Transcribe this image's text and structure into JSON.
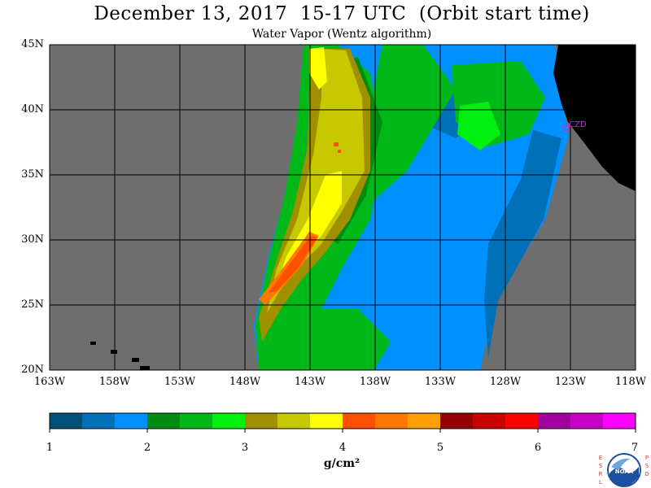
{
  "header": {
    "title": "December 13, 2017  15-17 UTC  (Orbit start time)",
    "subtitle": "Water Vapor (Wentz algorithm)"
  },
  "map": {
    "lat_labels": [
      "45N",
      "40N",
      "35N",
      "30N",
      "25N",
      "20N"
    ],
    "lon_labels": [
      "163W",
      "158W",
      "153W",
      "148W",
      "143W",
      "138W",
      "133W",
      "128W",
      "123W",
      "118W"
    ],
    "station_label": "CZD",
    "station_color": "#e020e0",
    "no_data_color": "#6e6e6e",
    "land_color": "#000000"
  },
  "colorbar": {
    "labels": [
      "1",
      "2",
      "3",
      "4",
      "5",
      "6",
      "7"
    ],
    "units": "g/cm²",
    "colors": [
      "#005078",
      "#0070b8",
      "#0090ff",
      "#008c10",
      "#00b818",
      "#00f010",
      "#a09000",
      "#c8c800",
      "#ffff00",
      "#ff5000",
      "#ff7800",
      "#ffa000",
      "#960000",
      "#c80000",
      "#ff0000",
      "#a000a0",
      "#c800c8",
      "#ff00ff"
    ]
  },
  "logo": {
    "left_letters": [
      "E",
      "S",
      "R",
      "L"
    ],
    "right_letters": [
      "P",
      "S",
      "D"
    ],
    "name": "NOAA"
  }
}
